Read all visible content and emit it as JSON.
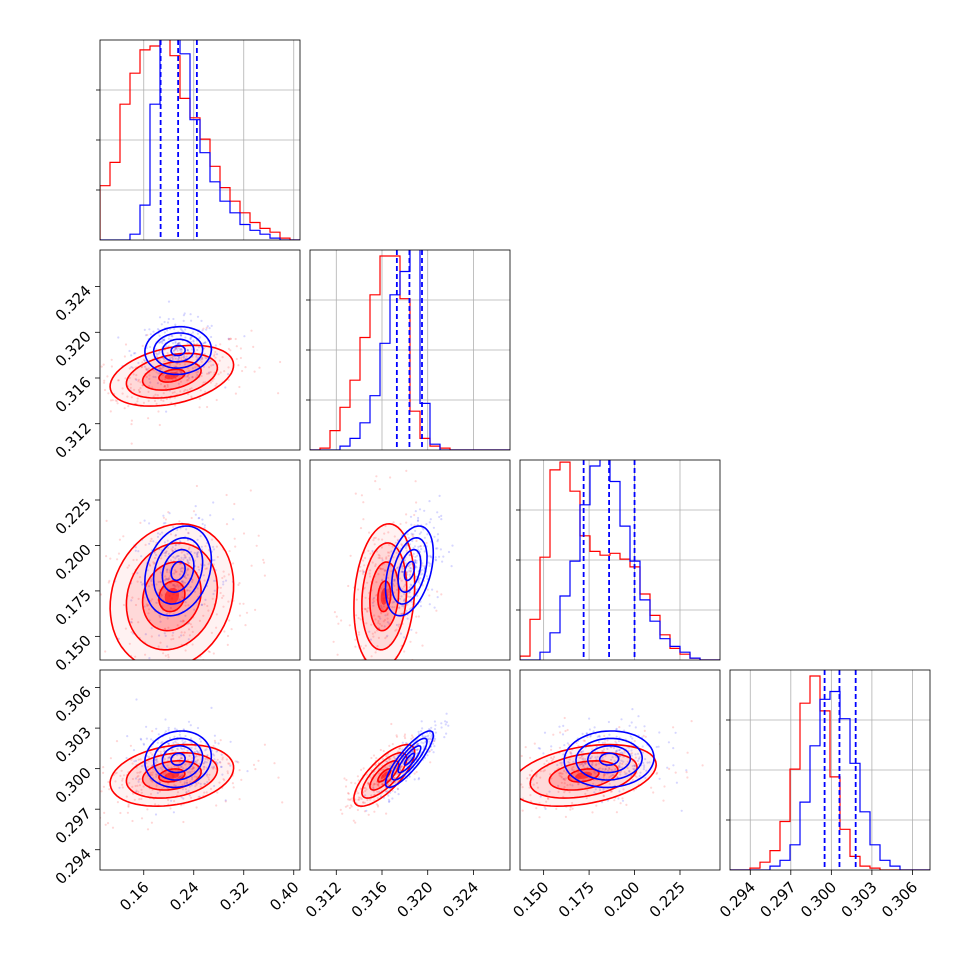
{
  "chart_data": {
    "type": "corner",
    "grid": true,
    "series": [
      {
        "color": "#0000ff",
        "dashed_quantiles": true
      },
      {
        "color": "#ff0000",
        "dashed_quantiles": false
      }
    ],
    "parameters": [
      {
        "range": [
          0.09,
          0.41
        ],
        "ticks": [
          0.16,
          0.24,
          0.32,
          0.4
        ],
        "tick_labels": [
          "0.16",
          "0.24",
          "0.32",
          "0.40"
        ],
        "blue": {
          "mean": 0.215,
          "sd": 0.028,
          "quantiles": [
            0.187,
            0.215,
            0.245
          ]
        },
        "red": {
          "mean": 0.205,
          "sd": 0.052
        }
      },
      {
        "range": [
          0.3097,
          0.3272
        ],
        "ticks": [
          0.312,
          0.316,
          0.32,
          0.324
        ],
        "tick_labels": [
          "0.312",
          "0.316",
          "0.320",
          "0.324"
        ],
        "blue": {
          "mean": 0.3184,
          "sd": 0.0011,
          "quantiles": [
            0.3173,
            0.3184,
            0.3195
          ]
        },
        "red": {
          "mean": 0.3162,
          "sd": 0.0014
        }
      },
      {
        "range": [
          0.137,
          0.247
        ],
        "ticks": [
          0.15,
          0.175,
          0.2,
          0.225
        ],
        "tick_labels": [
          "0.150",
          "0.175",
          "0.200",
          "0.225"
        ],
        "blue": {
          "mean": 0.186,
          "sd": 0.013,
          "quantiles": [
            0.172,
            0.186,
            0.2
          ]
        },
        "red": {
          "mean": 0.172,
          "sd": 0.021
        }
      },
      {
        "range": [
          0.2925,
          0.3073
        ],
        "ticks": [
          0.294,
          0.297,
          0.3,
          0.303,
          0.306
        ],
        "tick_labels": [
          "0.294",
          "0.297",
          "0.300",
          "0.303",
          "0.306"
        ],
        "blue": {
          "mean": 0.3007,
          "sd": 0.0011,
          "quantiles": [
            0.2995,
            0.3006,
            0.3018
          ]
        },
        "red": {
          "mean": 0.2995,
          "sd": 0.0012
        }
      }
    ],
    "histograms": {
      "bins": 20,
      "p0_blue": [
        0,
        0,
        0,
        3,
        18,
        70,
        110,
        112,
        96,
        62,
        45,
        30,
        20,
        14,
        8,
        5,
        3,
        1,
        0,
        0
      ],
      "p0_red": [
        28,
        40,
        70,
        86,
        98,
        100,
        104,
        95,
        73,
        63,
        52,
        38,
        27,
        20,
        14,
        9,
        6,
        4,
        1,
        0
      ],
      "p1_blue": [
        0,
        0,
        0,
        2,
        6,
        14,
        28,
        55,
        80,
        92,
        105,
        24,
        3,
        0,
        0,
        0,
        0,
        0,
        0,
        0
      ],
      "p1_red": [
        0,
        1,
        10,
        22,
        36,
        58,
        80,
        100,
        100,
        78,
        20,
        6,
        2,
        1,
        0,
        0,
        0,
        0,
        0,
        0
      ],
      "p2_blue": [
        0,
        0,
        4,
        14,
        33,
        51,
        80,
        100,
        104,
        92,
        69,
        51,
        31,
        20,
        11,
        7,
        4,
        1,
        0,
        0
      ],
      "p2_red": [
        2,
        21,
        53,
        98,
        102,
        87,
        64,
        56,
        54,
        55,
        52,
        48,
        34,
        23,
        13,
        6,
        3,
        1,
        0,
        0
      ],
      "p3_blue": [
        0,
        0,
        0,
        0,
        2,
        5,
        13,
        35,
        64,
        88,
        92,
        78,
        55,
        30,
        13,
        5,
        2,
        0,
        0,
        0
      ],
      "p3_red": [
        0,
        0,
        1,
        4,
        10,
        25,
        52,
        86,
        100,
        82,
        48,
        21,
        7,
        2,
        1,
        0,
        0,
        0,
        0,
        0
      ]
    },
    "correlations": {
      "blue": {
        "1_0": 0.05,
        "2_0": 0.25,
        "2_1": 0.4,
        "3_0": 0.1,
        "3_1": 0.85,
        "3_2": 0.05
      },
      "red": {
        "1_0": 0.35,
        "2_0": 0.15,
        "2_1": 0.15,
        "3_0": 0.25,
        "3_1": 0.75,
        "3_2": 0.35
      }
    }
  }
}
